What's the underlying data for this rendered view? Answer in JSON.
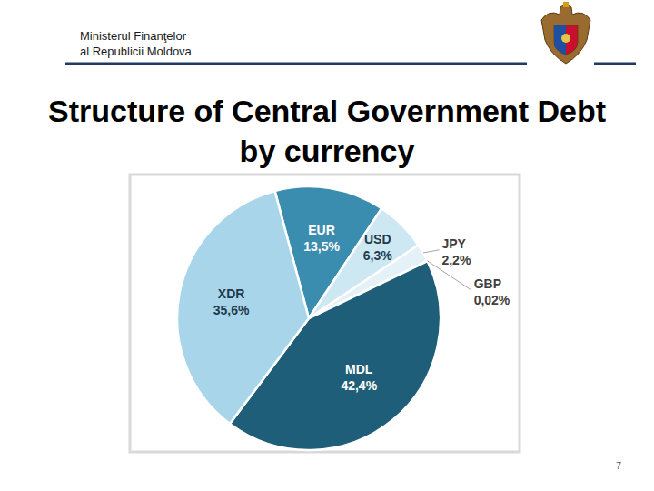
{
  "header": {
    "lines": [
      "Ministerul Finanţelor",
      "al Republicii Moldova"
    ]
  },
  "chart_data": {
    "type": "pie",
    "title": "Structure of Central Government Debt by currency",
    "categories": [
      "EUR",
      "USD",
      "JPY",
      "GBP",
      "MDL",
      "XDR"
    ],
    "values": [
      13.5,
      6.3,
      2.2,
      0.02,
      42.4,
      35.6
    ],
    "value_labels": [
      "13,5%",
      "6,3%",
      "2,2%",
      "0,02%",
      "42,4%",
      "35,6%"
    ],
    "colors": [
      "#3b8db0",
      "#cde8f3",
      "#e4f2f8",
      "#c9d3d8",
      "#1f5e78",
      "#a8d5ea"
    ],
    "data_labels": true
  },
  "page_number": 7
}
